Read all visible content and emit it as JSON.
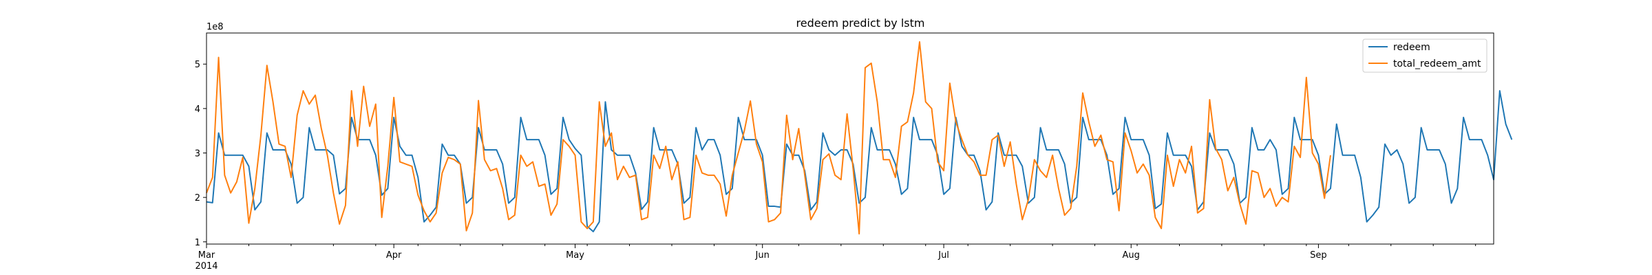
{
  "chart_data": {
    "type": "line",
    "title": "redeem predict by lstm",
    "xlabel": "",
    "ylabel": "",
    "y_scale_label": "1e8",
    "x_start": "2014-03-01",
    "x_end": "2014-09-30",
    "ylim": [
      0.95,
      5.7
    ],
    "yticks": [
      1,
      2,
      3,
      4,
      5
    ],
    "xticks": [
      {
        "date": "2014-03-01",
        "label": "Mar",
        "sublabel": "2014"
      },
      {
        "date": "2014-04-01",
        "label": "Apr",
        "sublabel": ""
      },
      {
        "date": "2014-05-01",
        "label": "May",
        "sublabel": ""
      },
      {
        "date": "2014-06-01",
        "label": "Jun",
        "sublabel": ""
      },
      {
        "date": "2014-07-01",
        "label": "Jul",
        "sublabel": ""
      },
      {
        "date": "2014-08-01",
        "label": "Aug",
        "sublabel": ""
      },
      {
        "date": "2014-09-01",
        "label": "Sep",
        "sublabel": ""
      }
    ],
    "grid": false,
    "legend_position": "top-right",
    "series": [
      {
        "name": "redeem",
        "color": "#1f77b4",
        "values": [
          1.9,
          1.88,
          3.45,
          2.95,
          2.95,
          2.95,
          2.95,
          2.7,
          1.72,
          1.9,
          3.45,
          3.07,
          3.07,
          3.07,
          2.75,
          1.87,
          2.0,
          3.57,
          3.07,
          3.07,
          3.07,
          2.95,
          2.08,
          2.2,
          3.8,
          3.3,
          3.3,
          3.3,
          2.95,
          2.05,
          2.2,
          3.8,
          3.15,
          2.95,
          2.95,
          2.45,
          1.45,
          1.6,
          1.78,
          3.2,
          2.95,
          2.95,
          2.75,
          1.87,
          2.0,
          3.57,
          3.07,
          3.07,
          3.07,
          2.75,
          1.87,
          2.0,
          3.8,
          3.3,
          3.3,
          3.3,
          2.95,
          2.07,
          2.2,
          3.8,
          3.3,
          3.1,
          2.95,
          1.35,
          1.23,
          1.45,
          4.15,
          3.07,
          2.95,
          2.95,
          2.95,
          2.55,
          1.73,
          1.9,
          3.57,
          3.07,
          3.07,
          3.07,
          2.75,
          1.87,
          2.0,
          3.57,
          3.07,
          3.3,
          3.3,
          2.95,
          2.07,
          2.2,
          3.8,
          3.3,
          3.3,
          3.3,
          2.95,
          1.8,
          1.8,
          1.78,
          3.2,
          2.95,
          2.95,
          2.6,
          1.72,
          1.9,
          3.45,
          3.07,
          2.95,
          3.07,
          3.07,
          2.75,
          1.87,
          2.0,
          3.57,
          3.07,
          3.07,
          3.07,
          2.75,
          2.07,
          2.2,
          3.8,
          3.3,
          3.3,
          3.3,
          2.95,
          2.07,
          2.2,
          3.8,
          3.15,
          2.95,
          2.95,
          2.6,
          1.72,
          1.9,
          3.45,
          2.95,
          2.95,
          2.95,
          2.7,
          1.87,
          2.0,
          3.57,
          3.07,
          3.07,
          3.07,
          2.75,
          1.87,
          2.0,
          3.8,
          3.3,
          3.3,
          3.3,
          2.95,
          2.07,
          2.2,
          3.8,
          3.3,
          3.3,
          3.3,
          2.95,
          1.75,
          1.85,
          3.45,
          2.95,
          2.95,
          2.95,
          2.7,
          1.72,
          1.9,
          3.45,
          3.07,
          3.07,
          3.07,
          2.75,
          1.87,
          2.0,
          3.57,
          3.07,
          3.07,
          3.3,
          3.07,
          2.07,
          2.2,
          3.8,
          3.3,
          3.3,
          3.3,
          2.95,
          2.07,
          2.2,
          3.65,
          2.95,
          2.95,
          2.95,
          2.45,
          1.45,
          1.6,
          1.78,
          3.2,
          2.95,
          3.07,
          2.75,
          1.87,
          2.0,
          3.57,
          3.07,
          3.07,
          3.07,
          2.75,
          1.87,
          2.2,
          3.8,
          3.3,
          3.3,
          3.3,
          2.95,
          2.4,
          4.4,
          3.65,
          3.3
        ]
      },
      {
        "name": "total_redeem_amt",
        "color": "#ff7f0e",
        "values": [
          2.1,
          2.45,
          5.15,
          2.5,
          2.1,
          2.35,
          2.9,
          1.42,
          2.2,
          3.4,
          4.97,
          4.15,
          3.2,
          3.15,
          2.45,
          3.85,
          4.4,
          4.1,
          4.3,
          3.55,
          2.95,
          2.1,
          1.4,
          1.82,
          4.4,
          3.15,
          4.5,
          3.6,
          4.1,
          1.55,
          2.7,
          4.25,
          2.8,
          2.75,
          2.7,
          2.05,
          1.7,
          1.45,
          1.65,
          2.55,
          2.9,
          2.85,
          2.75,
          1.25,
          1.65,
          4.18,
          2.85,
          2.6,
          2.65,
          2.2,
          1.5,
          1.6,
          2.95,
          2.7,
          2.8,
          2.25,
          2.3,
          1.6,
          1.85,
          3.3,
          3.15,
          2.95,
          1.45,
          1.3,
          1.45,
          4.15,
          3.15,
          3.45,
          2.4,
          2.7,
          2.45,
          2.5,
          1.5,
          1.55,
          2.95,
          2.65,
          3.15,
          2.4,
          2.8,
          1.5,
          1.55,
          2.95,
          2.55,
          2.5,
          2.5,
          2.3,
          1.58,
          2.5,
          3.0,
          3.5,
          4.17,
          3.2,
          2.8,
          1.45,
          1.5,
          1.65,
          3.85,
          2.85,
          3.55,
          2.5,
          1.5,
          1.75,
          2.85,
          2.98,
          2.5,
          2.4,
          3.88,
          2.65,
          1.18,
          4.92,
          5.02,
          4.15,
          2.85,
          2.85,
          2.45,
          3.6,
          3.7,
          4.35,
          5.5,
          4.15,
          4.0,
          2.8,
          2.6,
          4.57,
          3.7,
          3.3,
          2.95,
          2.8,
          2.5,
          2.5,
          3.3,
          3.4,
          2.7,
          3.25,
          2.3,
          1.5,
          1.95,
          2.85,
          2.6,
          2.45,
          2.95,
          2.2,
          1.6,
          1.75,
          2.7,
          4.35,
          3.7,
          3.15,
          3.4,
          2.85,
          2.8,
          1.7,
          3.45,
          3.05,
          2.55,
          2.75,
          2.5,
          1.55,
          1.3,
          2.95,
          2.25,
          2.85,
          2.55,
          3.15,
          1.65,
          1.75,
          4.2,
          3.1,
          2.85,
          2.15,
          2.45,
          1.85,
          1.4,
          2.6,
          2.55,
          2.0,
          2.2,
          1.8,
          2.0,
          1.9,
          3.15,
          2.9,
          4.7,
          3.0,
          2.75,
          1.98,
          2.95
        ]
      }
    ]
  }
}
